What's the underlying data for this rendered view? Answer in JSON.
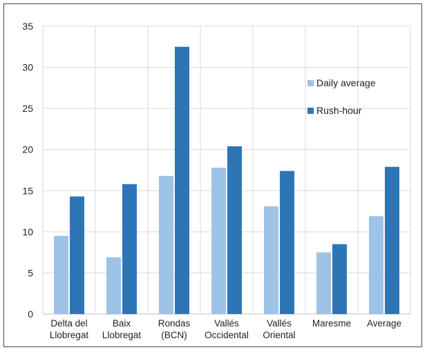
{
  "chart_data": {
    "type": "bar",
    "categories": [
      [
        "Delta del",
        "Llobregat"
      ],
      [
        "Baix",
        "Llobregat"
      ],
      [
        "Rondas",
        "(BCN)"
      ],
      [
        "Vallés",
        "Occidental"
      ],
      [
        "Vallés",
        "Oriental"
      ],
      [
        "Maresme"
      ],
      [
        "Average"
      ]
    ],
    "series": [
      {
        "name": "Daily average",
        "color": "#9dc3e6",
        "values": [
          9.5,
          6.9,
          16.8,
          17.8,
          13.1,
          7.5,
          11.9
        ]
      },
      {
        "name": "Rush-hour",
        "color": "#2e75b6",
        "values": [
          14.3,
          15.8,
          32.5,
          20.4,
          17.4,
          8.5,
          17.9
        ]
      }
    ],
    "ylim": [
      0,
      35
    ],
    "yticks": [
      0,
      5,
      10,
      15,
      20,
      25,
      30,
      35
    ],
    "grid": true,
    "legend_position": "right, inside plot",
    "title": "",
    "xlabel": "",
    "ylabel": ""
  }
}
